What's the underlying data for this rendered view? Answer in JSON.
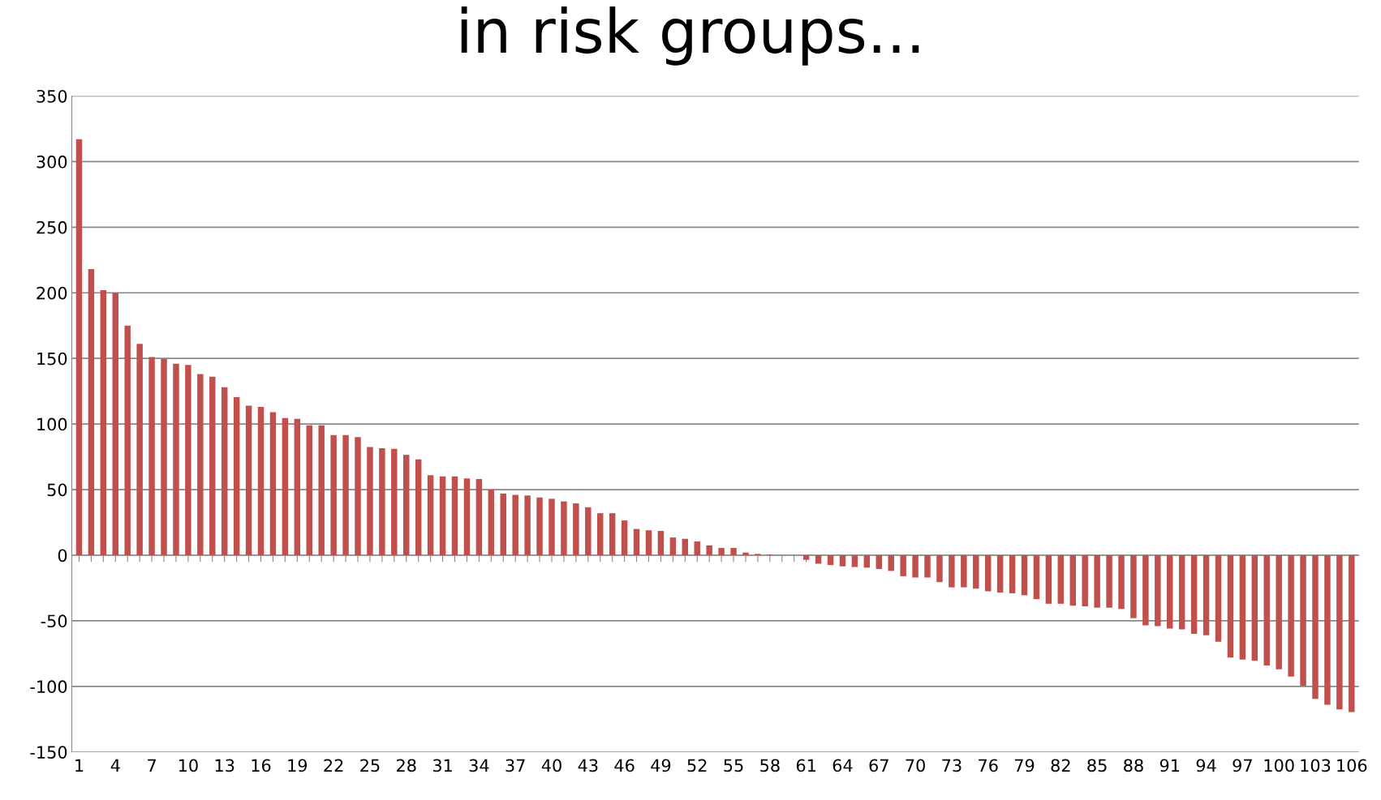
{
  "chart_data": {
    "type": "bar",
    "title": "in risk groups...",
    "categories": [
      "1",
      null,
      null,
      "4",
      null,
      null,
      "7",
      null,
      null,
      "10",
      null,
      null,
      "13",
      null,
      null,
      "16",
      null,
      null,
      "19",
      null,
      null,
      "22",
      null,
      null,
      "25",
      null,
      null,
      "28",
      null,
      null,
      "31",
      null,
      null,
      "34",
      null,
      null,
      "37",
      null,
      null,
      "40",
      null,
      null,
      "43",
      null,
      null,
      "46",
      null,
      null,
      "49",
      null,
      null,
      "52",
      null,
      null,
      "55",
      null,
      null,
      "58",
      null,
      null,
      "61",
      null,
      null,
      "64",
      null,
      null,
      "67",
      null,
      null,
      "70",
      null,
      null,
      "73",
      null,
      null,
      "76",
      null,
      null,
      "79",
      null,
      null,
      "82",
      null,
      null,
      "85",
      null,
      null,
      "88",
      null,
      null,
      "91",
      null,
      null,
      "94",
      null,
      null,
      "97",
      null,
      null,
      "100",
      null,
      null,
      "103",
      null,
      null,
      "106"
    ],
    "series": [
      {
        "color": "#c0504d",
        "values": [
          317,
          218,
          202,
          200,
          175,
          161,
          151,
          149.5,
          146,
          145,
          138,
          136,
          128,
          120.5,
          114,
          113,
          109,
          104.5,
          104,
          99,
          99,
          91.5,
          91.5,
          90,
          82.5,
          81.5,
          81,
          76.5,
          73,
          61,
          60,
          60,
          58.5,
          58,
          50,
          47,
          46,
          45.5,
          44,
          43,
          41,
          39.5,
          36.5,
          32,
          32,
          26.5,
          20,
          19,
          18.5,
          13.5,
          12.5,
          10.5,
          7.5,
          5.5,
          5.5,
          2,
          1,
          0.5,
          0,
          0,
          -3.5,
          -6.5,
          -7.5,
          -8.5,
          -9,
          -9.5,
          -10.5,
          -12,
          -16,
          -17,
          -17,
          -20.5,
          -24.5,
          -24.5,
          -25.5,
          -27.5,
          -28.5,
          -29,
          -30.5,
          -33.5,
          -37,
          -37,
          -38.5,
          -39,
          -40,
          -40,
          -41,
          -48,
          -53.5,
          -54,
          -56,
          -56.5,
          -60,
          -61,
          -66,
          -78,
          -79.5,
          -80.5,
          -84,
          -87,
          -92.5,
          -99.5,
          -109.5,
          -114,
          -117.5,
          -119.5
        ]
      }
    ],
    "ylim": [
      -150,
      350
    ],
    "yticks": [
      -150,
      -100,
      -50,
      0,
      50,
      100,
      150,
      200,
      250,
      300,
      350
    ],
    "grid": "y"
  }
}
